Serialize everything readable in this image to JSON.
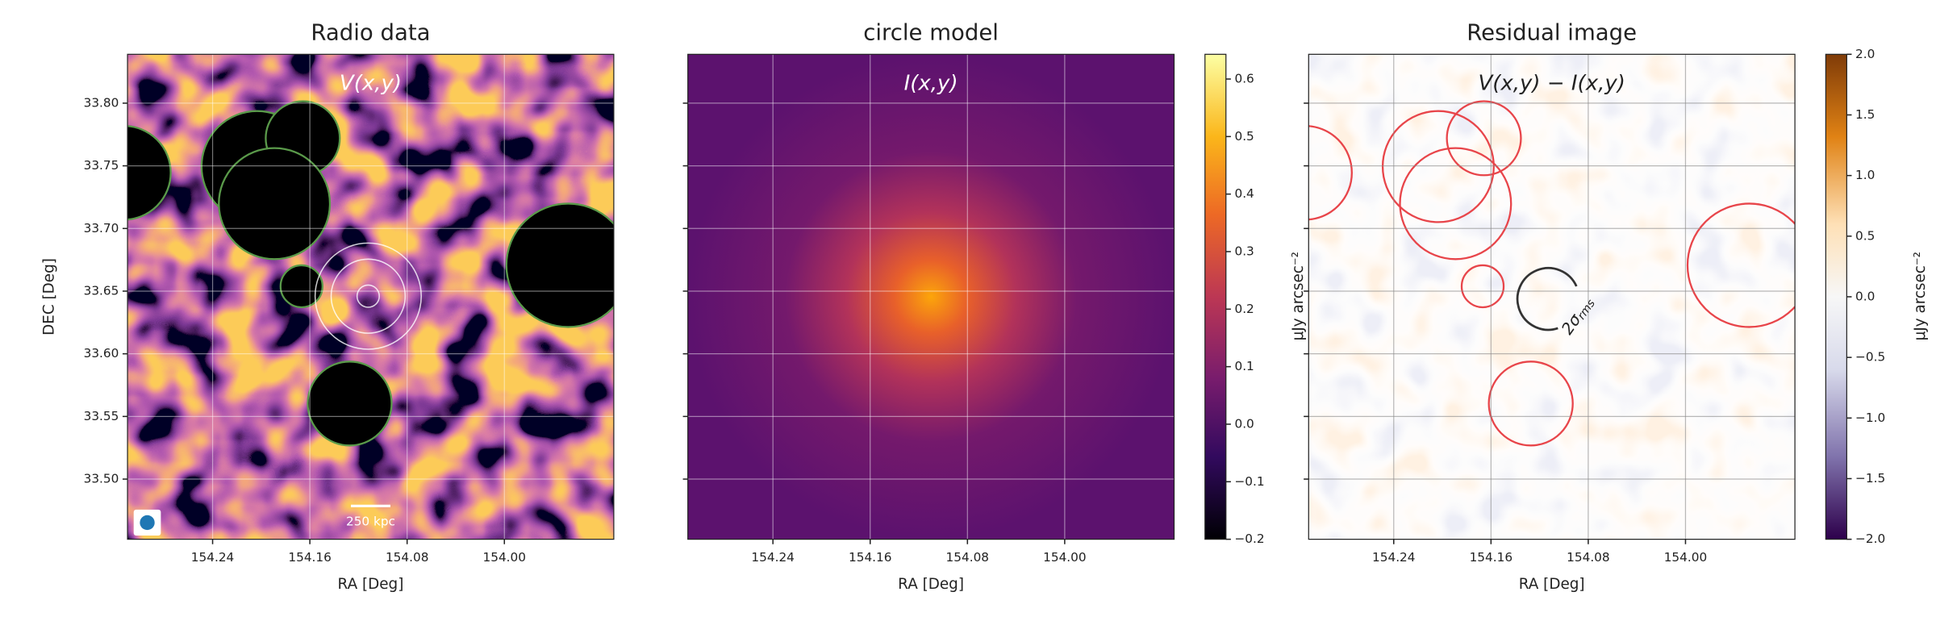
{
  "chart_data": [
    {
      "type": "image",
      "title": "Radio data",
      "annotation": "V(x,y)",
      "xlabel": "RA [Deg]",
      "ylabel": "DEC [Deg]",
      "xlim": [
        154.31,
        153.91
      ],
      "ylim": [
        33.452,
        33.839
      ],
      "xticks": [
        154.24,
        154.16,
        154.08,
        {
          "value": 154.0,
          "label": "154.00"
        }
      ],
      "yticks": [
        {
          "value": 33.5,
          "label": "33.50"
        },
        33.55,
        {
          "value": 33.6,
          "label": "33.60"
        },
        33.65,
        {
          "value": 33.7,
          "label": "33.70"
        },
        33.75,
        {
          "value": 33.8,
          "label": "33.80"
        }
      ],
      "grid": true,
      "scale_bar": "250 kpc"
    },
    {
      "type": "image",
      "title": "circle model",
      "annotation": "I(x,y)",
      "xlabel": "RA [Deg]",
      "xlim": [
        154.31,
        153.91
      ],
      "ylim": [
        33.452,
        33.839
      ],
      "xticks": [
        154.24,
        154.16,
        154.08,
        {
          "value": 154.0,
          "label": "154.00"
        }
      ],
      "yticks": [
        33.5,
        33.55,
        33.6,
        33.65,
        33.7,
        33.75,
        33.8
      ],
      "grid": true,
      "colorbar": {
        "label": "μJy arcsec⁻²",
        "lim": [
          -0.2,
          0.643
        ],
        "ticks": [
          {
            "value": -0.2,
            "label": "−0.2"
          },
          {
            "value": -0.1,
            "label": "−0.1"
          },
          {
            "value": 0,
            "label": "0.0"
          },
          0.1,
          0.2,
          0.3,
          0.4,
          0.5,
          0.6
        ]
      }
    },
    {
      "type": "image",
      "title": "Residual image",
      "annotation": "V(x,y) − I(x,y)",
      "xlabel": "RA [Deg]",
      "xlim": [
        154.31,
        153.91
      ],
      "ylim": [
        33.452,
        33.839
      ],
      "xticks": [
        154.24,
        154.16,
        154.08,
        {
          "value": 154.0,
          "label": "154.00"
        }
      ],
      "yticks": [
        33.5,
        33.55,
        33.6,
        33.65,
        33.7,
        33.75,
        33.8
      ],
      "grid": true,
      "sigma_label": "2σ",
      "sigma_subscript": "rms",
      "colorbar": {
        "label": "μJy arcsec⁻²",
        "lim": [
          -2.0,
          2.0
        ],
        "ticks": [
          {
            "value": -2,
            "label": "−2.0"
          },
          {
            "value": -1.5,
            "label": "−1.5"
          },
          {
            "value": -1,
            "label": "−1.0"
          },
          {
            "value": -0.5,
            "label": "−0.5"
          },
          {
            "value": 0,
            "label": "0.0"
          },
          {
            "value": 0.5,
            "label": "0.5"
          },
          {
            "value": 1,
            "label": "1.0"
          },
          {
            "value": 1.5,
            "label": "1.5"
          },
          {
            "value": 2,
            "label": "2.0"
          }
        ]
      }
    }
  ]
}
